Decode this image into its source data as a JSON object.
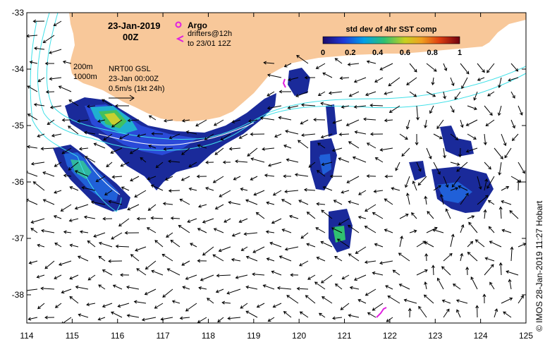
{
  "title": {
    "date": "23-Jan-2019",
    "hour": "00Z"
  },
  "legend": {
    "argo_label": "Argo",
    "drifters_label": "drifters@12h",
    "drifters_sub": "to 23/01 12Z",
    "argo_color": "#e020e0"
  },
  "colorbar": {
    "title": "std dev of 4hr SST comp",
    "ticks": [
      "0",
      "0.2",
      "0.4",
      "0.6",
      "0.8",
      "1"
    ]
  },
  "contours": {
    "c200": "200m",
    "c1000": "1000m"
  },
  "info": {
    "product": "NRT00 GSL",
    "datetime": "23-Jan 00:00Z",
    "scale": "0.5m/s (1kt 24h)"
  },
  "axes": {
    "x_ticks": [
      "114",
      "115",
      "116",
      "117",
      "118",
      "119",
      "120",
      "121",
      "122",
      "123",
      "124",
      "125"
    ],
    "y_ticks": [
      "-33",
      "-34",
      "-35",
      "-36",
      "-37",
      "-38"
    ],
    "xlim": [
      114,
      125
    ],
    "ylim": [
      -38.5,
      -33
    ]
  },
  "credit": "© IMOS 28-Jan-2019 11:27 Hobart",
  "colors": {
    "land": "#f8c89a",
    "contour": "#40e0e8",
    "contour_inner": "#ffffff"
  }
}
